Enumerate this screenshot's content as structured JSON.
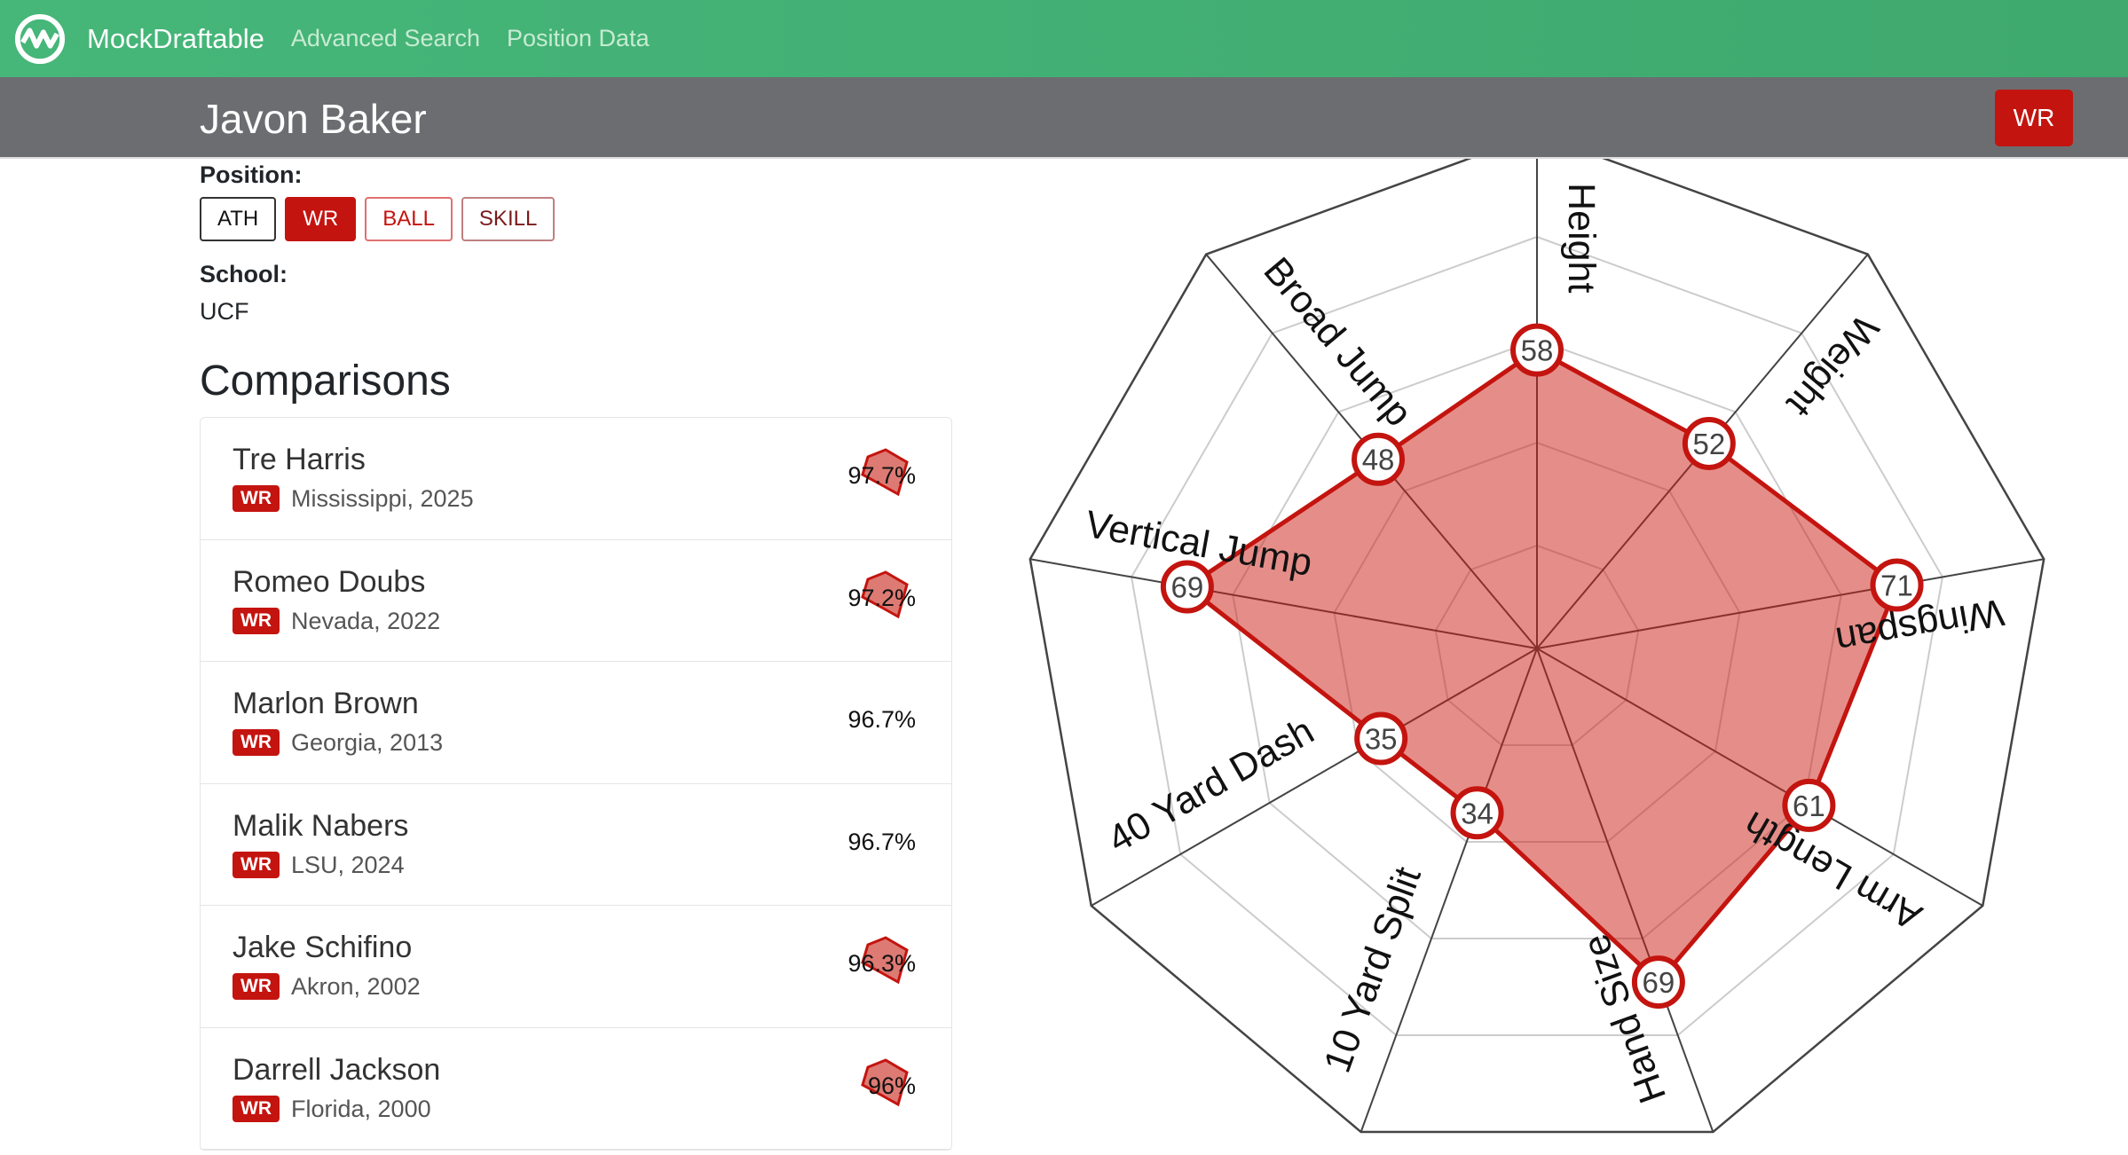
{
  "nav": {
    "brand": "MockDraftable",
    "links": [
      "Advanced Search",
      "Position Data"
    ],
    "logo_icon": "wave-circle-logo"
  },
  "header": {
    "name": "Javon Baker",
    "position_badge": "WR"
  },
  "profile": {
    "position_label": "Position:",
    "positions": [
      {
        "label": "ATH",
        "active": false
      },
      {
        "label": "WR",
        "active": true
      },
      {
        "label": "BALL",
        "active": false
      },
      {
        "label": "SKILL",
        "active": false
      }
    ],
    "school_label": "School:",
    "school": "UCF"
  },
  "comparisons": {
    "title": "Comparisons",
    "items": [
      {
        "name": "Tre Harris",
        "pos": "WR",
        "meta": "Mississippi, 2025",
        "pct": "97.7%"
      },
      {
        "name": "Romeo Doubs",
        "pos": "WR",
        "meta": "Nevada, 2022",
        "pct": "97.2%"
      },
      {
        "name": "Marlon Brown",
        "pos": "WR",
        "meta": "Georgia, 2013",
        "pct": "96.7%"
      },
      {
        "name": "Malik Nabers",
        "pos": "WR",
        "meta": "LSU, 2024",
        "pct": "96.7%"
      },
      {
        "name": "Jake Schifino",
        "pos": "WR",
        "meta": "Akron, 2002",
        "pct": "96.3%"
      },
      {
        "name": "Darrell Jackson",
        "pos": "WR",
        "meta": "Florida, 2000",
        "pct": "96%"
      }
    ]
  },
  "colors": {
    "nav_green": "#44b273",
    "header_gray": "#6c6d70",
    "accent_red": "#c4140f"
  },
  "chart_data": {
    "type": "radar",
    "range": [
      0,
      100
    ],
    "grid_levels": 5,
    "categories": [
      "Height",
      "Weight",
      "Wingspan",
      "Arm Length",
      "Hand Size",
      "10 Yard Split",
      "40 Yard Dash",
      "Vertical Jump",
      "Broad Jump"
    ],
    "values": [
      58,
      52,
      71,
      61,
      69,
      34,
      35,
      69,
      48
    ]
  }
}
